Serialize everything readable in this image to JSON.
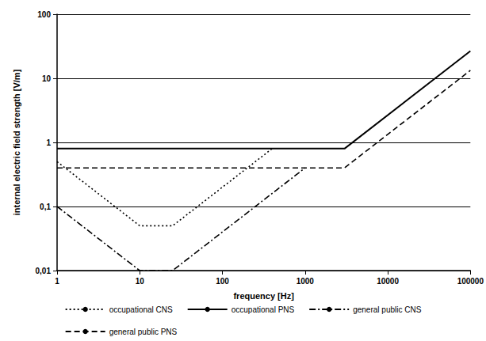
{
  "chart_data": {
    "type": "line",
    "x_label": "frequency [Hz]",
    "y_label": "internal electric field strength [V/m]",
    "log": true,
    "grid": true,
    "legend": "bottom",
    "xlim": [
      1,
      100000
    ],
    "ylim": [
      0.01,
      100
    ],
    "xticks": [
      1,
      10,
      100,
      1000,
      10000,
      100000
    ],
    "yticks": [
      {
        "value": 0.01,
        "label": "0,01"
      },
      {
        "value": 0.1,
        "label": "0,1"
      },
      1,
      10,
      100
    ],
    "series": [
      {
        "name": "occupational CNS",
        "color": "#000000",
        "line_style": "dotted",
        "x": [
          1,
          10,
          25,
          400
        ],
        "values": [
          0.5,
          0.05,
          0.05,
          0.8
        ]
      },
      {
        "name": "occupational PNS",
        "color": "#000000",
        "line_style": "solid",
        "x": [
          1,
          3000,
          100000
        ],
        "values": [
          0.8,
          0.8,
          26.7
        ]
      },
      {
        "name": "general public CNS",
        "color": "#000000",
        "line_style": "dashdot",
        "x": [
          1,
          10,
          25,
          1000
        ],
        "values": [
          0.1,
          0.01,
          0.01,
          0.4
        ]
      },
      {
        "name": "general public PNS",
        "color": "#000000",
        "line_style": "dashed",
        "x": [
          1,
          3000,
          100000
        ],
        "values": [
          0.4,
          0.4,
          13.3
        ]
      }
    ]
  }
}
